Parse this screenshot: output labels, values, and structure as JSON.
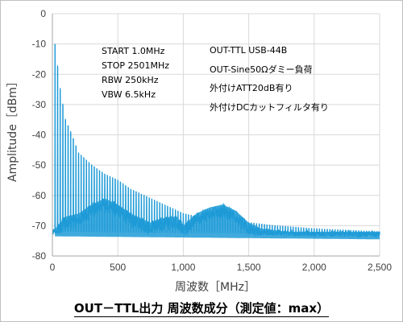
{
  "chart_data": {
    "type": "line",
    "xlabel": "周波数［MHz］",
    "ylabel": "Amplitude［dBm］",
    "xlim": [
      0,
      2500
    ],
    "ylim": [
      -80,
      0
    ],
    "xticks": [
      0,
      500,
      1000,
      1500,
      2000,
      2500
    ],
    "xtick_labels": [
      "0",
      "500",
      "1,000",
      "1,500",
      "2,000",
      "2,500"
    ],
    "yticks": [
      0,
      -10,
      -20,
      -30,
      -40,
      -50,
      -60,
      -70,
      -80
    ],
    "ytick_labels": [
      "0",
      "-10",
      "-20",
      "-30",
      "-40",
      "-50",
      "-60",
      "-70",
      "-80"
    ],
    "grid": true,
    "series_color": "#1f9bd7",
    "series": [
      {
        "fundamental_mhz": 20,
        "noise_floor_dbm": -72,
        "noise_floor_dbm_end": -73,
        "harmonic_peaks": [
          {
            "x": 20,
            "y": -10
          },
          {
            "x": 60,
            "y": -25
          },
          {
            "x": 100,
            "y": -35
          },
          {
            "x": 150,
            "y": -40
          },
          {
            "x": 200,
            "y": -46
          },
          {
            "x": 300,
            "y": -50
          },
          {
            "x": 400,
            "y": -53
          },
          {
            "x": 500,
            "y": -55
          },
          {
            "x": 600,
            "y": -58
          },
          {
            "x": 700,
            "y": -60
          },
          {
            "x": 800,
            "y": -62
          },
          {
            "x": 900,
            "y": -64
          },
          {
            "x": 1000,
            "y": -66
          },
          {
            "x": 1100,
            "y": -67
          },
          {
            "x": 1300,
            "y": -68
          },
          {
            "x": 1500,
            "y": -69
          },
          {
            "x": 1700,
            "y": -70
          },
          {
            "x": 2000,
            "y": -71
          },
          {
            "x": 2500,
            "y": -72
          }
        ],
        "envelope": [
          {
            "x": 0,
            "y": -72
          },
          {
            "x": 100,
            "y": -67
          },
          {
            "x": 200,
            "y": -66
          },
          {
            "x": 300,
            "y": -63
          },
          {
            "x": 400,
            "y": -61
          },
          {
            "x": 500,
            "y": -63
          },
          {
            "x": 600,
            "y": -66
          },
          {
            "x": 700,
            "y": -68
          },
          {
            "x": 750,
            "y": -69
          },
          {
            "x": 800,
            "y": -68
          },
          {
            "x": 900,
            "y": -67
          },
          {
            "x": 950,
            "y": -67
          },
          {
            "x": 1000,
            "y": -70
          },
          {
            "x": 1050,
            "y": -68
          },
          {
            "x": 1100,
            "y": -66
          },
          {
            "x": 1200,
            "y": -64
          },
          {
            "x": 1300,
            "y": -63
          },
          {
            "x": 1400,
            "y": -65
          },
          {
            "x": 1500,
            "y": -69
          },
          {
            "x": 1600,
            "y": -71
          },
          {
            "x": 1800,
            "y": -72
          },
          {
            "x": 2500,
            "y": -72
          }
        ]
      }
    ]
  },
  "annotations_left": [
    "START  1.0MHz",
    "STOP  2501MHz",
    "RBW 250kHz",
    "VBW 6.5kHz"
  ],
  "annotations_right": [
    "OUT-TTL USB-44B",
    "OUT-Sine50Ωダミー負荷",
    "外付けATT20dB有り",
    "外付けDCカットフィルタ有り"
  ],
  "caption": "OUT－TTL出力 周波数成分（測定値：max）"
}
